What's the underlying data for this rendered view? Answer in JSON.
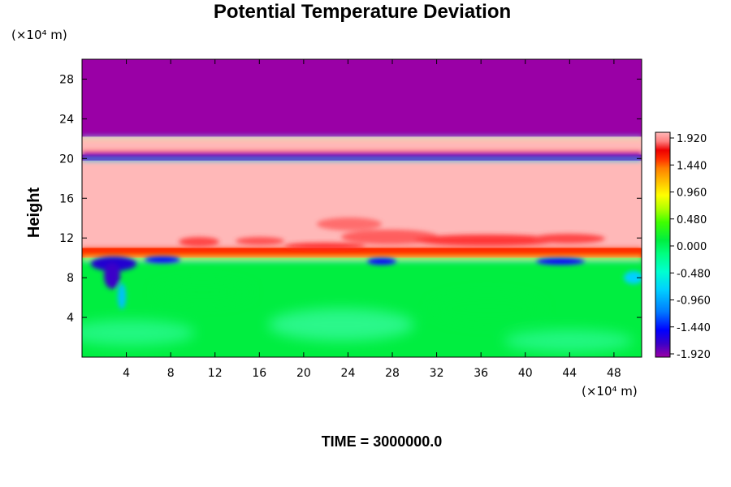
{
  "chart_data": {
    "type": "heatmap",
    "title": "Potential Temperature Deviation",
    "ylabel": "Height",
    "xlabel": "",
    "x_unit": "(×10⁴ m)",
    "y_unit": "(×10⁴ m)",
    "x_ticks": [
      4,
      8,
      12,
      16,
      20,
      24,
      28,
      32,
      36,
      40,
      44,
      48
    ],
    "y_ticks": [
      4,
      8,
      12,
      16,
      20,
      24,
      28
    ],
    "xlim": [
      0,
      50.5
    ],
    "ylim": [
      0,
      30
    ],
    "colorbar": {
      "ticks": [
        "1.920",
        "1.440",
        "0.960",
        "0.480",
        "0.000",
        "-0.480",
        "-0.960",
        "-1.440",
        "-1.920"
      ],
      "range": [
        -2.0,
        2.0
      ],
      "colors": [
        "#9a00a6",
        "#3a00c8",
        "#0000ff",
        "#0078ff",
        "#00d0ff",
        "#00ffd0",
        "#00ff80",
        "#00ee40",
        "#40ff00",
        "#b0ff00",
        "#ffff00",
        "#ffc000",
        "#ff8000",
        "#ff3000",
        "#ee0000",
        "#ff8080",
        "#ffb8b8"
      ]
    },
    "layers": [
      {
        "from": 0,
        "to": 10,
        "value": -0.2
      },
      {
        "from": 10,
        "to": 11,
        "value": 1.2
      },
      {
        "from": 11,
        "to": 19.8,
        "value": 1.95
      },
      {
        "from": 19.8,
        "to": 20.4,
        "value": -1.95
      },
      {
        "from": 20.4,
        "to": 22.2,
        "value": 1.95
      },
      {
        "from": 22.2,
        "to": 30,
        "value": -1.95
      }
    ],
    "time_label": "TIME = 3000000.0",
    "grid": false,
    "legend": "colorbar-right"
  }
}
